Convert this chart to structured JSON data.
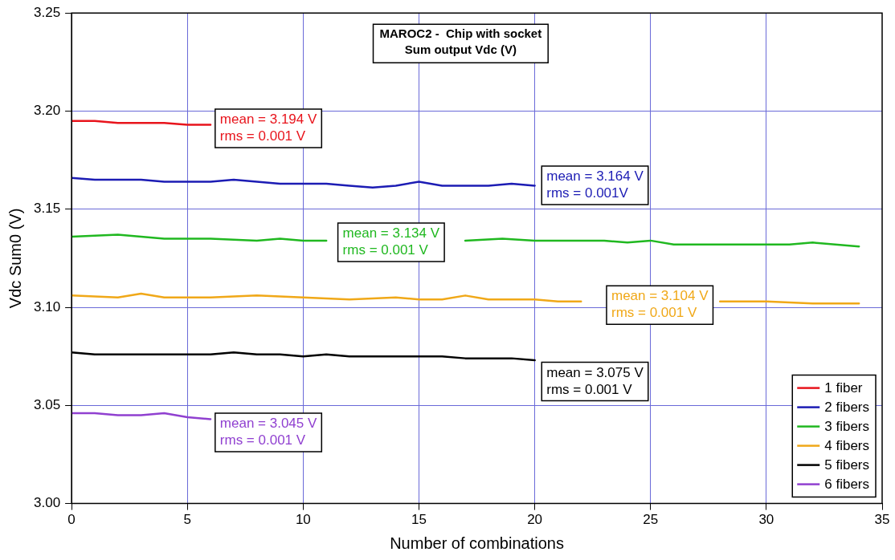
{
  "chart_data": {
    "type": "line",
    "title": "MAROC2 -  Chip with socket",
    "subtitle": "Sum output Vdc (V)",
    "xlabel": "Number of combinations",
    "ylabel": "Vdc Sum0 (V)",
    "series": [
      {
        "name": "1 fiber",
        "color": "#e8141c",
        "x": [
          0,
          1,
          2,
          3,
          4,
          5,
          6
        ],
        "values": [
          3.195,
          3.195,
          3.194,
          3.194,
          3.194,
          3.193,
          3.193
        ]
      },
      {
        "name": "2 fibers",
        "color": "#1c1cb4",
        "x": [
          0,
          1,
          2,
          3,
          4,
          5,
          6,
          7,
          8,
          9,
          10,
          11,
          12,
          13,
          14,
          15,
          16,
          17,
          18,
          19,
          20
        ],
        "values": [
          3.166,
          3.165,
          3.165,
          3.165,
          3.164,
          3.164,
          3.164,
          3.165,
          3.164,
          3.163,
          3.163,
          3.163,
          3.162,
          3.161,
          3.162,
          3.164,
          3.162,
          3.162,
          3.162,
          3.163,
          3.162
        ]
      },
      {
        "name": "3 fibers",
        "color": "#20b820",
        "x": [
          0,
          2,
          4,
          6,
          8,
          9,
          10,
          11,
          14,
          15,
          16,
          17,
          18.6,
          20,
          22,
          23,
          24,
          25,
          26,
          28,
          30,
          31,
          32,
          34
        ],
        "values": [
          3.136,
          3.137,
          3.135,
          3.135,
          3.134,
          3.135,
          3.134,
          3.134,
          null,
          null,
          null,
          3.134,
          3.135,
          3.134,
          3.134,
          3.134,
          3.133,
          3.134,
          3.132,
          3.132,
          3.132,
          3.132,
          3.133,
          3.131
        ]
      },
      {
        "name": "4 fibers",
        "color": "#f0a818",
        "x": [
          0,
          2,
          3,
          4,
          6,
          8,
          10,
          12,
          14,
          15,
          16,
          17,
          18,
          20,
          21,
          22,
          24,
          26,
          28,
          30,
          32,
          34
        ],
        "values": [
          3.106,
          3.105,
          3.107,
          3.105,
          3.105,
          3.106,
          3.105,
          3.104,
          3.105,
          3.104,
          3.104,
          3.106,
          3.104,
          3.104,
          3.103,
          3.103,
          null,
          null,
          3.103,
          3.103,
          3.102,
          3.102
        ]
      },
      {
        "name": "5 fibers",
        "color": "#000000",
        "x": [
          0,
          1,
          2,
          3,
          4,
          5,
          6,
          7,
          8,
          9,
          10,
          11,
          12,
          13,
          14,
          15,
          16,
          17,
          18,
          19,
          20
        ],
        "values": [
          3.077,
          3.076,
          3.076,
          3.076,
          3.076,
          3.076,
          3.076,
          3.077,
          3.076,
          3.076,
          3.075,
          3.076,
          3.075,
          3.075,
          3.075,
          3.075,
          3.075,
          3.074,
          3.074,
          3.074,
          3.073
        ]
      },
      {
        "name": "6 fibers",
        "color": "#9040d0",
        "x": [
          0,
          1,
          2,
          3,
          4,
          5,
          6
        ],
        "values": [
          3.046,
          3.046,
          3.045,
          3.045,
          3.046,
          3.044,
          3.043
        ]
      }
    ],
    "annotations": [
      "mean = 3.194 V\nrms = 0.001 V",
      "mean = 3.164 V\nrms = 0.001V",
      "mean = 3.134 V\nrms = 0.001 V",
      "mean = 3.104 V\nrms = 0.001 V",
      "mean = 3.075 V\nrms = 0.001 V",
      "mean = 3.045 V\nrms = 0.001 V"
    ],
    "xlim": [
      0,
      35
    ],
    "xticks": [
      0,
      5,
      10,
      15,
      20,
      25,
      30,
      35
    ],
    "ylim": [
      3.0,
      3.25
    ],
    "yticks": [
      {
        "value": 3.0,
        "label": "3.00"
      },
      {
        "value": 3.05,
        "label": "3.05"
      },
      {
        "value": 3.1,
        "label": "3.10"
      },
      {
        "value": 3.15,
        "label": "3.15"
      },
      {
        "value": 3.2,
        "label": "3.20"
      },
      {
        "value": 3.25,
        "label": "3.25"
      }
    ],
    "grid": true,
    "legend": "bottom right",
    "marker": "none",
    "line_style": "solid"
  }
}
